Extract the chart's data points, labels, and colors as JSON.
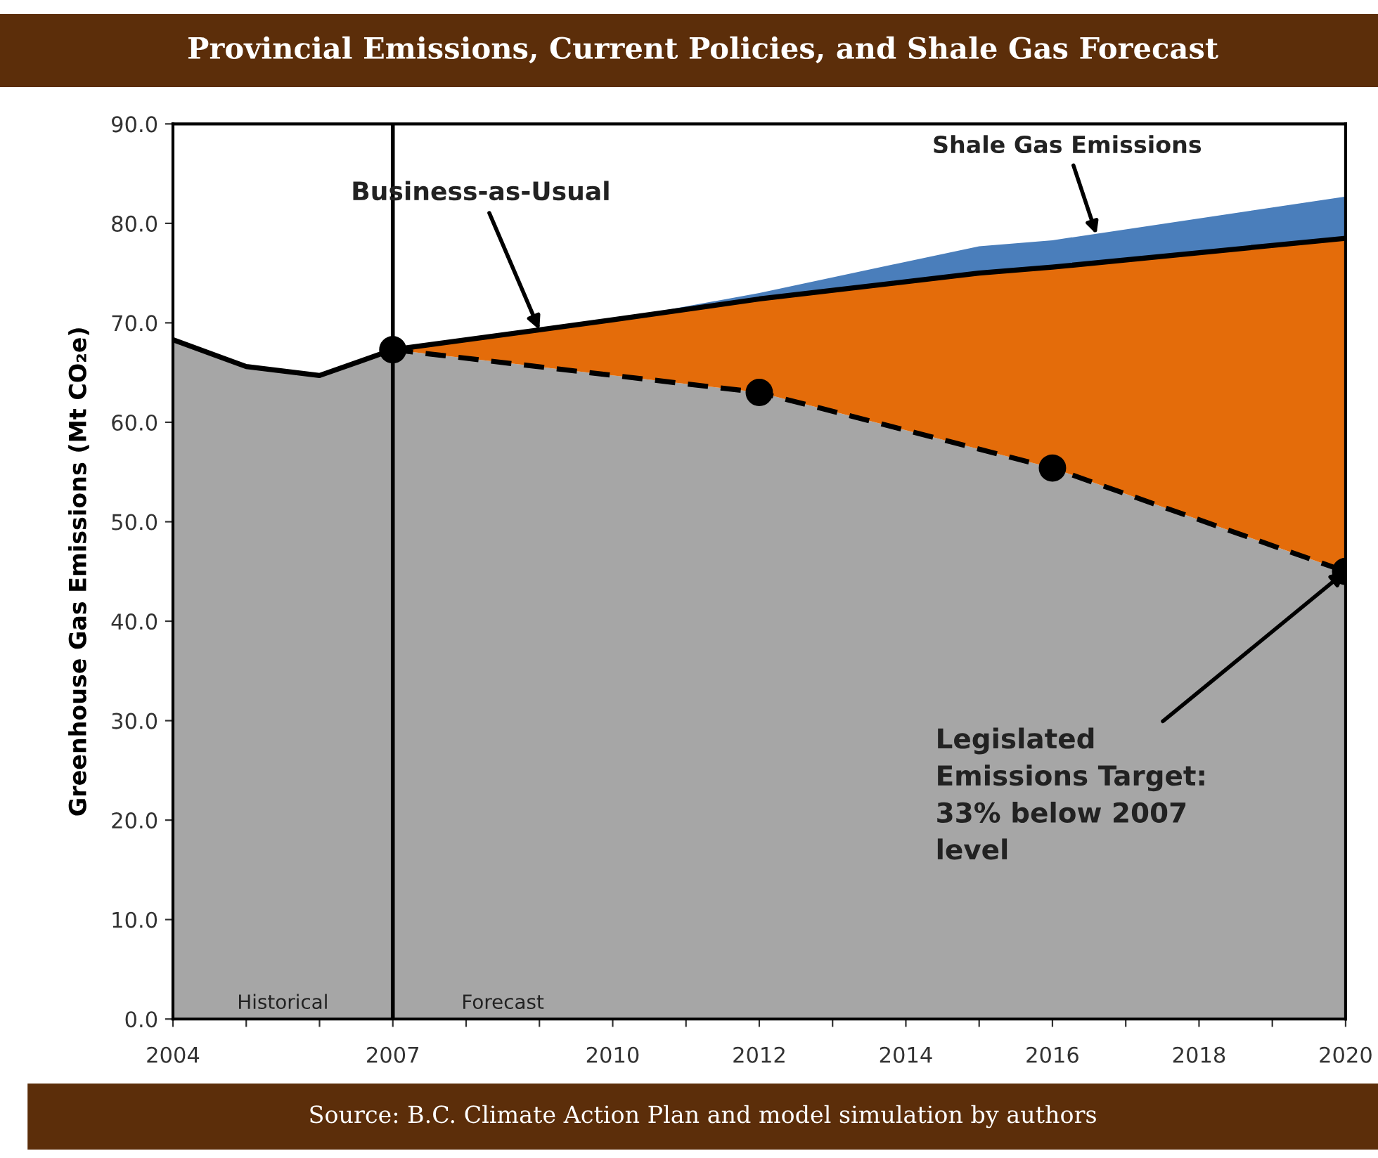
{
  "chart_data": {
    "type": "area",
    "title": "Provincial Emissions, Current Policies, and Shale Gas Forecast",
    "ylabel": "Greenhouse Gas Emissions (Mt CO₂e)",
    "series": [
      {
        "color": "#4a7ebb",
        "x": [
          2010,
          2012,
          2015,
          2016,
          2020
        ],
        "values": [
          70.3,
          73.0,
          77.7,
          78.3,
          82.7
        ]
      },
      {
        "color": "#e46c0a",
        "line_style": "solid",
        "x": [
          2007,
          2010,
          2012,
          2015,
          2016,
          2020
        ],
        "values": [
          67.3,
          70.3,
          72.4,
          75.0,
          75.6,
          78.5
        ]
      },
      {
        "color": "#a6a6a6",
        "line_style": "solid",
        "x": [
          2004,
          2005,
          2006,
          2007
        ],
        "values": [
          68.3,
          65.6,
          64.7,
          67.3
        ]
      },
      {
        "color": "#a6a6a6",
        "line_style": "dashed",
        "marker": "circle",
        "x": [
          2007,
          2012,
          2016,
          2020
        ],
        "values": [
          67.3,
          63.0,
          55.4,
          45.0
        ]
      }
    ],
    "xlim": [
      2004,
      2020
    ],
    "xticks": [
      2004,
      {
        "value": 2005,
        "label": null
      },
      {
        "value": 2006,
        "label": null
      },
      2007,
      {
        "value": 2008,
        "label": null
      },
      {
        "value": 2009,
        "label": null
      },
      2010,
      {
        "value": 2011,
        "label": null
      },
      2012,
      {
        "value": 2013,
        "label": null
      },
      2014,
      {
        "value": 2015,
        "label": null
      },
      2016,
      {
        "value": 2017,
        "label": null
      },
      2018,
      {
        "value": 2019,
        "label": null
      },
      2020
    ],
    "ylim": [
      0,
      90
    ],
    "yticks": [
      {
        "value": 0,
        "label": "0.0"
      },
      {
        "value": 10,
        "label": "10.0"
      },
      {
        "value": 20,
        "label": "20.0"
      },
      {
        "value": 30,
        "label": "30.0"
      },
      {
        "value": 40,
        "label": "40.0"
      },
      {
        "value": 50,
        "label": "50.0"
      },
      {
        "value": 60,
        "label": "60.0"
      },
      {
        "value": 70,
        "label": "70.0"
      },
      {
        "value": 80,
        "label": "80.0"
      },
      {
        "value": 90,
        "label": "90.0"
      }
    ],
    "ref_lines": [
      {
        "axis": "x",
        "value": 2007,
        "color": "#000000",
        "line_style": "solid"
      }
    ],
    "annotations": [
      {
        "text": "Business-as-Usual",
        "x": 2009.0,
        "y": 69.3
      },
      {
        "text": "Shale Gas Emissions",
        "x": 2016.6,
        "y": 78.9
      },
      {
        "text": "Legislated\nEmissions Target:\n33% below 2007\nlevel",
        "x": 2020,
        "y": 45.0
      },
      {
        "text": "Historical",
        "x": 2005.5,
        "y": 0
      },
      {
        "text": "Forecast",
        "x": 2008.5,
        "y": 0
      },
      "Source: B.C. Climate Action Plan and model simulation by authors"
    ],
    "grid": false
  }
}
